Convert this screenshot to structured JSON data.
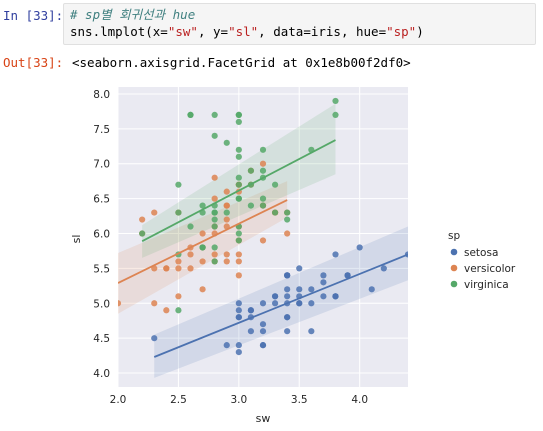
{
  "input_prompt": "In [33]:",
  "output_prompt": "Out[33]:",
  "code": {
    "comment": "# sp별 회귀선과 hue",
    "line2": {
      "p1": "sns.lmplot(x=",
      "x_str": "\"sw\"",
      "p2": ", y=",
      "y_str": "\"sl\"",
      "p3": ", data=iris, hue=",
      "hue_str": "\"sp\"",
      "p4": ")"
    }
  },
  "output_text": "<seaborn.axisgrid.FacetGrid at 0x1e8b00f2df0>",
  "chart_data": {
    "type": "scatter",
    "xlabel": "sw",
    "ylabel": "sl",
    "xlim": [
      2.0,
      4.4
    ],
    "ylim": [
      3.8,
      8.1
    ],
    "xticks": [
      2.0,
      2.5,
      3.0,
      3.5,
      4.0
    ],
    "xtick_labels": [
      "2.0",
      "2.5",
      "3.0",
      "3.5",
      "4.0"
    ],
    "yticks": [
      4.0,
      4.5,
      5.0,
      5.5,
      6.0,
      6.5,
      7.0,
      7.5,
      8.0
    ],
    "ytick_labels": [
      "4.0",
      "4.5",
      "5.0",
      "5.5",
      "6.0",
      "6.5",
      "7.0",
      "7.5",
      "8.0"
    ],
    "grid": true,
    "background": "#eaeaf2",
    "legend": {
      "title": "sp",
      "placement": "right"
    },
    "series": [
      {
        "name": "setosa",
        "color": "#4c72b0",
        "regression": {
          "x": [
            2.3,
            4.4
          ],
          "y": [
            4.23,
            5.7
          ]
        },
        "ci_band": {
          "x": [
            2.3,
            4.4
          ],
          "lower": [
            3.93,
            5.33
          ],
          "upper": [
            4.55,
            6.1
          ]
        },
        "points": [
          [
            2.3,
            4.5
          ],
          [
            2.9,
            4.4
          ],
          [
            3.0,
            4.4
          ],
          [
            3.0,
            4.3
          ],
          [
            3.1,
            4.6
          ],
          [
            3.1,
            4.8
          ],
          [
            3.0,
            4.8
          ],
          [
            3.2,
            4.7
          ],
          [
            3.2,
            4.4
          ],
          [
            3.4,
            4.6
          ],
          [
            3.4,
            4.8
          ],
          [
            3.1,
            4.9
          ],
          [
            3.0,
            4.9
          ],
          [
            3.2,
            5.0
          ],
          [
            3.3,
            5.0
          ],
          [
            3.5,
            5.0
          ],
          [
            3.6,
            5.0
          ],
          [
            3.4,
            5.0
          ],
          [
            3.0,
            5.0
          ],
          [
            3.4,
            5.1
          ],
          [
            3.5,
            5.1
          ],
          [
            3.7,
            5.1
          ],
          [
            3.8,
            5.1
          ],
          [
            3.3,
            5.1
          ],
          [
            3.6,
            5.2
          ],
          [
            3.4,
            5.2
          ],
          [
            3.5,
            5.2
          ],
          [
            4.1,
            5.2
          ],
          [
            3.7,
            5.3
          ],
          [
            3.4,
            5.4
          ],
          [
            3.7,
            5.4
          ],
          [
            3.9,
            5.4
          ],
          [
            3.9,
            5.4
          ],
          [
            3.4,
            5.4
          ],
          [
            3.5,
            5.5
          ],
          [
            4.2,
            5.5
          ],
          [
            4.0,
            5.8
          ],
          [
            4.4,
            5.7
          ],
          [
            3.8,
            5.7
          ],
          [
            3.8,
            5.1
          ],
          [
            3.4,
            5.4
          ],
          [
            3.5,
            5.0
          ],
          [
            3.2,
            4.4
          ],
          [
            3.1,
            4.9
          ],
          [
            3.0,
            4.8
          ],
          [
            3.6,
            4.6
          ],
          [
            3.2,
            4.6
          ],
          [
            3.3,
            5.1
          ],
          [
            3.8,
            5.1
          ],
          [
            3.4,
            4.8
          ]
        ]
      },
      {
        "name": "versicolor",
        "color": "#dd8452",
        "regression": {
          "x": [
            2.0,
            3.4
          ],
          "y": [
            5.29,
            6.48
          ]
        },
        "ci_band": {
          "x": [
            2.0,
            3.4
          ],
          "lower": [
            4.85,
            6.23
          ],
          "upper": [
            5.72,
            6.75
          ]
        },
        "points": [
          [
            2.0,
            5.0
          ],
          [
            2.2,
            6.0
          ],
          [
            2.2,
            6.2
          ],
          [
            2.3,
            5.5
          ],
          [
            2.3,
            6.3
          ],
          [
            2.3,
            5.0
          ],
          [
            2.4,
            5.5
          ],
          [
            2.4,
            5.5
          ],
          [
            2.4,
            4.9
          ],
          [
            2.5,
            5.5
          ],
          [
            2.5,
            5.6
          ],
          [
            2.5,
            6.3
          ],
          [
            2.5,
            5.1
          ],
          [
            2.6,
            5.8
          ],
          [
            2.6,
            5.5
          ],
          [
            2.6,
            5.7
          ],
          [
            2.7,
            5.8
          ],
          [
            2.7,
            6.0
          ],
          [
            2.7,
            5.6
          ],
          [
            2.7,
            5.2
          ],
          [
            2.8,
            6.5
          ],
          [
            2.8,
            5.7
          ],
          [
            2.8,
            6.1
          ],
          [
            2.8,
            6.8
          ],
          [
            2.8,
            5.6
          ],
          [
            2.9,
            6.6
          ],
          [
            2.9,
            6.4
          ],
          [
            2.9,
            5.6
          ],
          [
            2.9,
            6.2
          ],
          [
            2.9,
            5.7
          ],
          [
            2.9,
            6.1
          ],
          [
            3.0,
            5.6
          ],
          [
            3.0,
            5.9
          ],
          [
            3.0,
            6.1
          ],
          [
            3.0,
            5.7
          ],
          [
            3.0,
            6.6
          ],
          [
            3.0,
            6.7
          ],
          [
            3.0,
            5.4
          ],
          [
            3.1,
            6.9
          ],
          [
            3.1,
            6.7
          ],
          [
            3.2,
            7.0
          ],
          [
            3.2,
            6.4
          ],
          [
            3.2,
            5.9
          ],
          [
            3.3,
            6.3
          ],
          [
            3.4,
            6.0
          ],
          [
            3.4,
            6.3
          ],
          [
            2.8,
            6.0
          ],
          [
            3.0,
            6.7
          ],
          [
            2.9,
            6.4
          ],
          [
            3.3,
            6.3
          ]
        ]
      },
      {
        "name": "virginica",
        "color": "#55a868",
        "regression": {
          "x": [
            2.2,
            3.8
          ],
          "y": [
            5.89,
            7.34
          ]
        },
        "ci_band": {
          "x": [
            2.2,
            3.8
          ],
          "lower": [
            5.65,
            6.85
          ],
          "upper": [
            6.12,
            7.86
          ]
        },
        "points": [
          [
            2.2,
            6.0
          ],
          [
            2.5,
            6.3
          ],
          [
            2.5,
            5.7
          ],
          [
            2.5,
            6.7
          ],
          [
            2.5,
            4.9
          ],
          [
            2.6,
            7.7
          ],
          [
            2.6,
            6.1
          ],
          [
            2.7,
            6.4
          ],
          [
            2.7,
            6.3
          ],
          [
            2.7,
            5.8
          ],
          [
            2.7,
            5.8
          ],
          [
            2.8,
            7.7
          ],
          [
            2.8,
            6.4
          ],
          [
            2.8,
            6.3
          ],
          [
            2.8,
            6.2
          ],
          [
            2.8,
            5.8
          ],
          [
            2.8,
            7.4
          ],
          [
            2.8,
            6.1
          ],
          [
            2.8,
            5.6
          ],
          [
            2.9,
            7.3
          ],
          [
            2.9,
            6.3
          ],
          [
            3.0,
            7.7
          ],
          [
            3.0,
            7.6
          ],
          [
            3.0,
            7.2
          ],
          [
            3.0,
            7.1
          ],
          [
            3.0,
            6.8
          ],
          [
            3.0,
            6.5
          ],
          [
            3.0,
            6.1
          ],
          [
            3.0,
            6.0
          ],
          [
            3.0,
            5.9
          ],
          [
            3.0,
            6.7
          ],
          [
            3.0,
            6.5
          ],
          [
            3.1,
            6.9
          ],
          [
            3.1,
            6.7
          ],
          [
            3.1,
            6.4
          ],
          [
            3.2,
            7.2
          ],
          [
            3.2,
            6.9
          ],
          [
            3.2,
            6.8
          ],
          [
            3.2,
            6.5
          ],
          [
            3.2,
            6.4
          ],
          [
            3.3,
            6.3
          ],
          [
            3.3,
            6.7
          ],
          [
            3.4,
            6.2
          ],
          [
            3.4,
            6.3
          ],
          [
            3.6,
            7.2
          ],
          [
            3.8,
            7.7
          ],
          [
            3.8,
            7.9
          ],
          [
            2.6,
            7.7
          ],
          [
            3.0,
            7.7
          ],
          [
            2.8,
            6.3
          ]
        ]
      }
    ]
  }
}
